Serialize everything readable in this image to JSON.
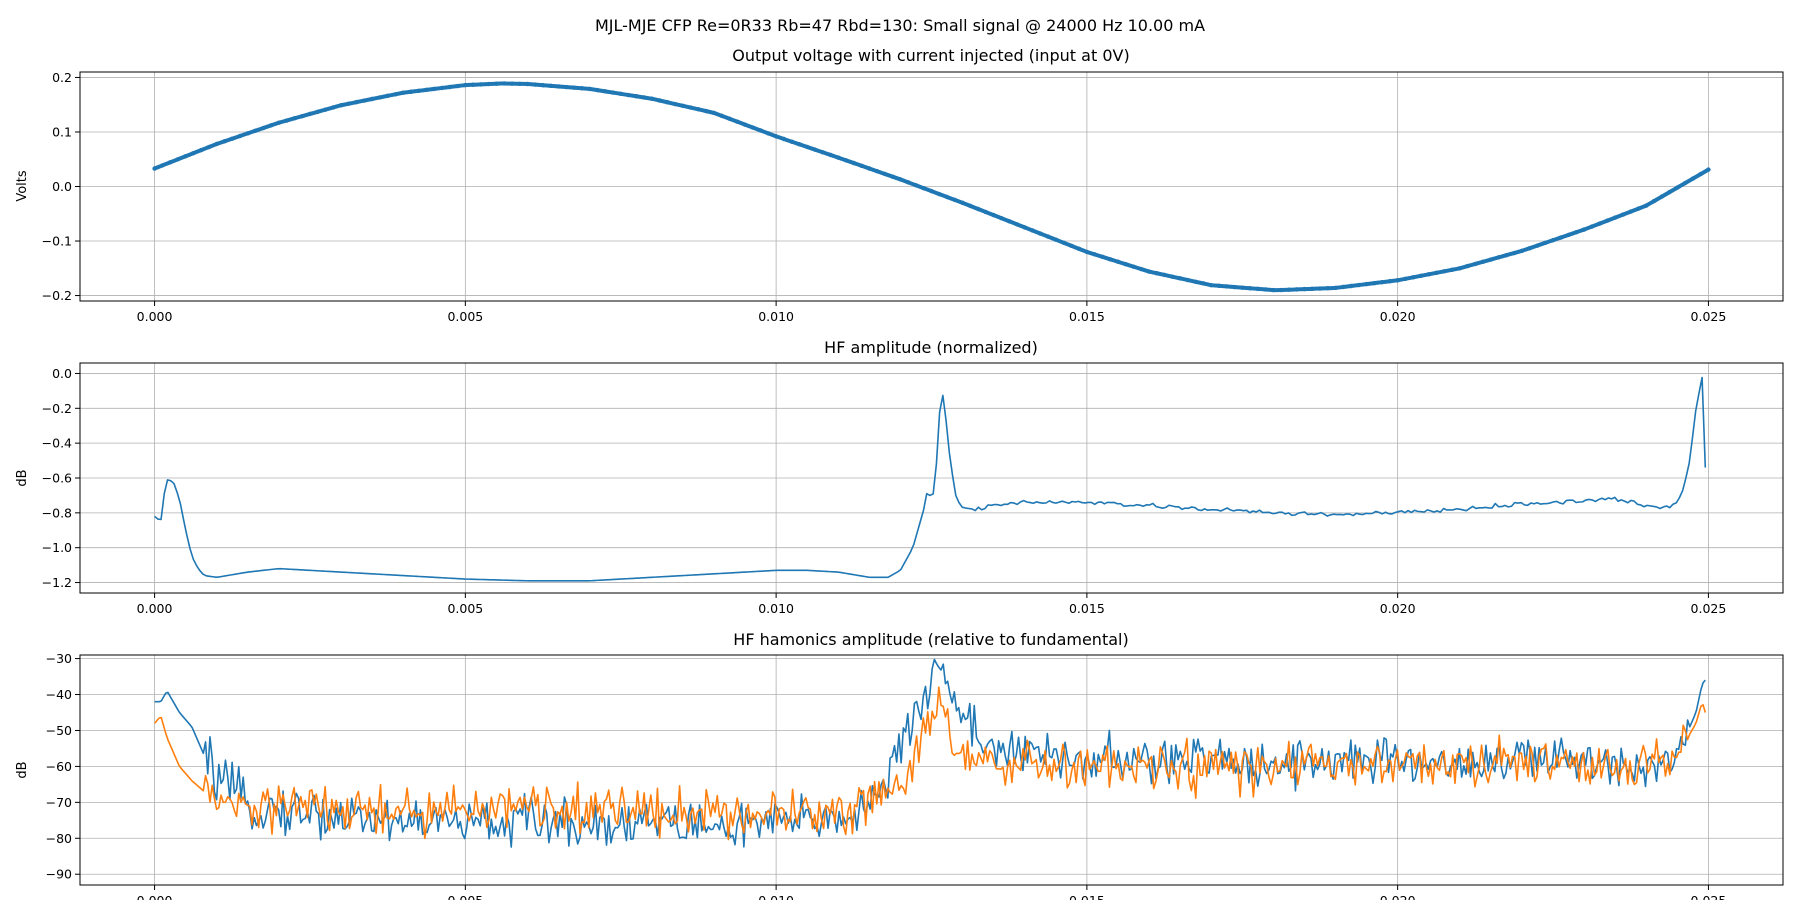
{
  "chart_data": {
    "suptitle": "MJL-MJE CFP Re=0R33 Rb=47 Rbd=130: Small signal @ 24000 Hz 10.00 mA",
    "subplots": [
      {
        "type": "line",
        "title": "Output voltage with current injected (input at 0V)",
        "ylabel": "Volts",
        "xlim": [
          -0.0012,
          0.0262
        ],
        "ylim": [
          -0.21,
          0.21
        ],
        "xticks": [
          0.0,
          0.005,
          0.01,
          0.015,
          0.02,
          0.025
        ],
        "xtick_labels": [
          "0.000",
          "0.005",
          "0.010",
          "0.015",
          "0.020",
          "0.025"
        ],
        "yticks": [
          -0.2,
          -0.1,
          0.0,
          0.1,
          0.2
        ],
        "ytick_labels": [
          "−0.2",
          "−0.1",
          "0.0",
          "0.1",
          "0.2"
        ],
        "grid": true,
        "series": [
          {
            "color": "#1f77b4",
            "marker": "dots",
            "x": [
              0,
              0.001,
              0.002,
              0.003,
              0.004,
              0.005,
              0.0056,
              0.006,
              0.007,
              0.008,
              0.009,
              0.01,
              0.011,
              0.012,
              0.013,
              0.014,
              0.015,
              0.016,
              0.017,
              0.018,
              0.0181,
              0.019,
              0.02,
              0.021,
              0.022,
              0.023,
              0.024,
              0.025
            ],
            "y": [
              0.033,
              0.078,
              0.117,
              0.149,
              0.172,
              0.186,
              0.189,
              0.188,
              0.179,
              0.161,
              0.135,
              0.092,
              0.053,
              0.013,
              -0.03,
              -0.075,
              -0.12,
              -0.156,
              -0.181,
              -0.19,
              -0.19,
              -0.186,
              -0.172,
              -0.15,
              -0.118,
              -0.079,
              -0.035,
              0.031
            ]
          }
        ]
      },
      {
        "type": "line",
        "title": "HF amplitude (normalized)",
        "ylabel": "dB",
        "xlim": [
          -0.0012,
          0.0262
        ],
        "ylim": [
          -1.26,
          0.06
        ],
        "xticks": [
          0.0,
          0.005,
          0.01,
          0.015,
          0.02,
          0.025
        ],
        "xtick_labels": [
          "0.000",
          "0.005",
          "0.010",
          "0.015",
          "0.020",
          "0.025"
        ],
        "yticks": [
          -1.2,
          -1.0,
          -0.8,
          -0.6,
          -0.4,
          -0.2,
          0.0
        ],
        "ytick_labels": [
          "−1.2",
          "−1.0",
          "−0.8",
          "−0.6",
          "−0.4",
          "−0.2",
          "0.0"
        ],
        "grid": true,
        "series": [
          {
            "color": "#1f77b4",
            "x": [
              0,
              0.0001,
              0.00015,
              0.0002,
              0.0003,
              0.0004,
              0.0005,
              0.0006,
              0.0007,
              0.0008,
              0.001,
              0.0015,
              0.002,
              0.003,
              0.004,
              0.005,
              0.006,
              0.007,
              0.008,
              0.009,
              0.01,
              0.0105,
              0.011,
              0.0115,
              0.0118,
              0.012,
              0.0122,
              0.0124,
              0.01245,
              0.0125,
              0.0126,
              0.01265,
              0.0127,
              0.0128,
              0.0129,
              0.013,
              0.0132,
              0.0135,
              0.014,
              0.015,
              0.016,
              0.017,
              0.018,
              0.019,
              0.02,
              0.021,
              0.022,
              0.023,
              0.0235,
              0.024,
              0.0243,
              0.0245,
              0.0246,
              0.0247,
              0.0248,
              0.0249,
              0.02495
            ],
            "y": [
              -0.82,
              -0.85,
              -0.7,
              -0.61,
              -0.62,
              -0.72,
              -0.9,
              -1.05,
              -1.12,
              -1.16,
              -1.17,
              -1.14,
              -1.12,
              -1.14,
              -1.16,
              -1.18,
              -1.19,
              -1.19,
              -1.17,
              -1.15,
              -1.13,
              -1.13,
              -1.14,
              -1.17,
              -1.17,
              -1.13,
              -1.0,
              -0.75,
              -0.62,
              -0.78,
              -0.45,
              -0.08,
              -0.15,
              -0.5,
              -0.72,
              -0.77,
              -0.78,
              -0.76,
              -0.74,
              -0.74,
              -0.76,
              -0.78,
              -0.8,
              -0.81,
              -0.8,
              -0.78,
              -0.75,
              -0.73,
              -0.72,
              -0.76,
              -0.77,
              -0.74,
              -0.66,
              -0.5,
              -0.2,
              -0.02,
              -0.54
            ]
          }
        ]
      },
      {
        "type": "line",
        "title": "HF hamonics amplitude (relative to fundamental)",
        "ylabel": "dB",
        "xlim": [
          -0.0012,
          0.0262
        ],
        "ylim": [
          -93,
          -29
        ],
        "xticks": [
          0.0,
          0.005,
          0.01,
          0.015,
          0.02,
          0.025
        ],
        "xtick_labels": [
          "0.000",
          "0.005",
          "0.010",
          "0.015",
          "0.020",
          "0.025"
        ],
        "yticks": [
          -90,
          -80,
          -70,
          -60,
          -50,
          -40,
          -30
        ],
        "ytick_labels": [
          "−90",
          "−80",
          "−70",
          "−60",
          "−50",
          "−40",
          "−30"
        ],
        "grid": true,
        "series": [
          {
            "color": "#1f77b4",
            "x": [
              0,
              0.0001,
              0.0002,
              0.0004,
              0.0006,
              0.0008,
              0.001,
              0.0015,
              0.002,
              0.003,
              0.004,
              0.005,
              0.006,
              0.007,
              0.008,
              0.009,
              0.01,
              0.011,
              0.0115,
              0.012,
              0.0122,
              0.0124,
              0.0125,
              0.0126,
              0.0127,
              0.0128,
              0.013,
              0.0135,
              0.014,
              0.015,
              0.016,
              0.017,
              0.018,
              0.019,
              0.02,
              0.021,
              0.022,
              0.023,
              0.024,
              0.0245,
              0.0248,
              0.0249,
              0.02495
            ],
            "y": [
              -42,
              -42,
              -39,
              -45,
              -49,
              -57,
              -63,
              -71,
              -72,
              -74,
              -75,
              -76,
              -75,
              -76,
              -75,
              -77,
              -76,
              -74,
              -71,
              -57,
              -46,
              -40,
              -36,
              -32,
              -33,
              -38,
              -46,
              -55,
              -57,
              -58,
              -59,
              -58,
              -59,
              -58,
              -59,
              -59,
              -58,
              -59,
              -59,
              -57,
              -45,
              -37,
              -36
            ]
          },
          {
            "color": "#ff7f0e",
            "x": [
              0,
              0.0001,
              0.0002,
              0.0004,
              0.0006,
              0.0008,
              0.001,
              0.0015,
              0.002,
              0.003,
              0.004,
              0.005,
              0.006,
              0.007,
              0.008,
              0.009,
              0.01,
              0.011,
              0.0115,
              0.012,
              0.0122,
              0.0124,
              0.0125,
              0.0126,
              0.0127,
              0.0128,
              0.013,
              0.0135,
              0.014,
              0.015,
              0.016,
              0.017,
              0.018,
              0.019,
              0.02,
              0.021,
              0.022,
              0.023,
              0.024,
              0.0245,
              0.0248,
              0.0249,
              0.02495
            ],
            "y": [
              -48,
              -46,
              -52,
              -60,
              -64,
              -67,
              -70,
              -72,
              -71,
              -72,
              -73,
              -72,
              -71,
              -72,
              -72,
              -73,
              -73,
              -72,
              -70,
              -63,
              -58,
              -50,
              -44,
              -42,
              -46,
              -52,
              -58,
              -60,
              -60,
              -60,
              -61,
              -60,
              -61,
              -59,
              -60,
              -60,
              -59,
              -60,
              -59,
              -57,
              -48,
              -42,
              -45
            ]
          }
        ]
      }
    ]
  }
}
